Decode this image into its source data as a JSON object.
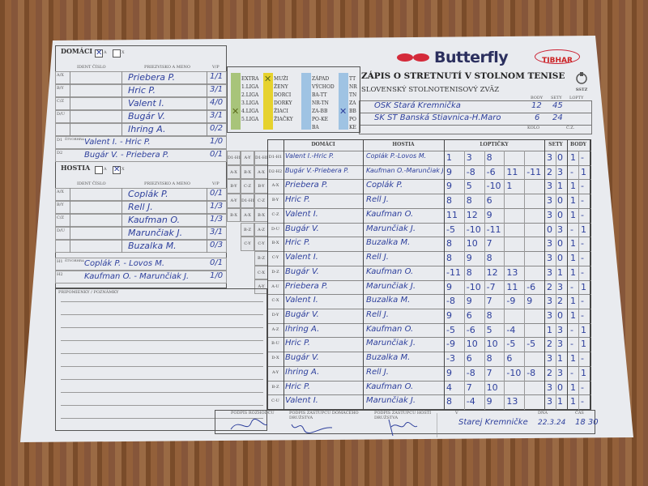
{
  "home": {
    "title": "DOMÁCI",
    "option_a": "A",
    "option_x": "X",
    "selected": "A",
    "col_ident": "IDENT ČÍSLO",
    "col_name": "PRIEZVISKO A MENO",
    "col_vp": "V/P",
    "players": [
      {
        "slot": "A/X",
        "name": "Priebera P.",
        "vp": "1/1"
      },
      {
        "slot": "B/Y",
        "name": "Hric P.",
        "vp": "3/1"
      },
      {
        "slot": "C/Z",
        "name": "Valent I.",
        "vp": "4/0"
      },
      {
        "slot": "D/U",
        "name": "Bugár V.",
        "vp": "3/1"
      },
      {
        "slot": "",
        "name": "Ihring A.",
        "vp": "0/2"
      }
    ],
    "doubles_label": "ŠTVORHRA",
    "doubles": [
      {
        "slot": "D1",
        "name": "Valent I. - Hric P.",
        "vp": "1/0"
      },
      {
        "slot": "D2",
        "name": "Bugár V. - Priebera P.",
        "vp": "0/1"
      }
    ]
  },
  "guest": {
    "title": "HOSTIA",
    "option_a": "A",
    "option_x": "X",
    "selected": "X",
    "col_ident": "IDENT ČÍSLO",
    "col_name": "PRIEZVISKO A MENO",
    "col_vp": "V/P",
    "players": [
      {
        "slot": "A/X",
        "name": "Coplák P.",
        "vp": "0/1"
      },
      {
        "slot": "B/Y",
        "name": "Rell J.",
        "vp": "1/3"
      },
      {
        "slot": "C/Z",
        "name": "Kaufman O.",
        "vp": "1/3"
      },
      {
        "slot": "D/U",
        "name": "Marunčiak J.",
        "vp": "3/1"
      },
      {
        "slot": "",
        "name": "Buzalka M.",
        "vp": "0/3"
      }
    ],
    "doubles_label": "ŠTVORHRA",
    "doubles": [
      {
        "slot": "H1",
        "name": "Coplák P. - Lovos M.",
        "vp": "0/1"
      },
      {
        "slot": "H2",
        "name": "Kaufman O. - Marunčiak J.",
        "vp": "1/0"
      }
    ]
  },
  "notes_label": "PRIPOMIENKY / POZNÁMKY",
  "categories": [
    {
      "color": "#a8c47a",
      "items": [
        "EXTRA",
        "1.LIGA",
        "2.LIGA",
        "3.LIGA",
        "4.LIGA",
        "5.LIGA"
      ],
      "checked": "4.LIGA"
    },
    {
      "color": "#e6d22e",
      "items": [
        "MUŽI",
        "ŽENY",
        "DORCI",
        "DORKY",
        "ŽIACI",
        "ŽIAČKY"
      ],
      "checked": "MUŽI"
    },
    {
      "color": "#9fc3e3",
      "items": [
        "ZÁPAD",
        "VÝCHOD",
        "BA-TT",
        "NR-TN",
        "ZA-BB",
        "PO-KE",
        "BA"
      ],
      "checked": ""
    },
    {
      "color": "#9fc3e3",
      "items": [
        "TT",
        "NR",
        "TN",
        "ZA",
        "BB",
        "PO",
        "KE"
      ],
      "checked": "BB"
    }
  ],
  "pairing_orders": [
    [
      "D1-H1",
      "A-X",
      "B-Y",
      "A-Y",
      "B-X"
    ],
    [
      "A-Y",
      "B-X",
      "C-Z",
      "D1-H1",
      "A-X",
      "B-Z",
      "C-Y"
    ],
    [
      "D1-H1",
      "A-X",
      "B-Y",
      "C-Z",
      "B-X",
      "A-Z",
      "C-Y",
      "B-Z",
      "C-X",
      "A-Y"
    ]
  ],
  "header": {
    "brand": "Butterfly",
    "brand2": "TIBHAR",
    "title": "ZÁPIS O STRETNUTÍ V STOLNOM TENISE",
    "federation": "SLOVENSKÝ STOLNOTENISOVÝ ZVÄZ",
    "federation_logo": "SSTZ",
    "col_body": "BODY",
    "col_sety": "SETY",
    "col_lopty": "LOPTY",
    "home_team": {
      "name": "OSK Stará Kremnička",
      "body": "12",
      "sety": "45"
    },
    "guest_team": {
      "name": "ŠK ST Banská Štiavnica-H.Maro",
      "body": "6",
      "sety": "24"
    },
    "label_kolo": "KOLO",
    "label_cz": "Č.Z."
  },
  "matches": {
    "col_home": "DOMÁCI",
    "col_guest": "HOSTIA",
    "col_balls": "LOPTIČKY",
    "col_sets": "SETY",
    "col_points": "BODY",
    "rows": [
      {
        "pair": "D1-H1",
        "home": "Valent I.-Hric P.",
        "guest": "Coplák P.-Lovos M.",
        "balls": [
          "1",
          "3",
          "8"
        ],
        "sets": [
          "3",
          "0"
        ],
        "points": [
          "1",
          "-"
        ]
      },
      {
        "pair": "D2-H2",
        "home": "Bugár V.-Priebera P.",
        "guest": "Kaufman O.-Marunčiak J.",
        "balls": [
          "9",
          "-8",
          "-6",
          "11",
          "-11"
        ],
        "sets": [
          "2",
          "3"
        ],
        "points": [
          "-",
          "1"
        ]
      },
      {
        "pair": "A-X",
        "home": "Priebera P.",
        "guest": "Coplák P.",
        "balls": [
          "9",
          "5",
          "-10",
          "1"
        ],
        "sets": [
          "3",
          "1"
        ],
        "points": [
          "1",
          "-"
        ]
      },
      {
        "pair": "B-Y",
        "home": "Hric P.",
        "guest": "Rell J.",
        "balls": [
          "8",
          "8",
          "6"
        ],
        "sets": [
          "3",
          "0"
        ],
        "points": [
          "1",
          "-"
        ]
      },
      {
        "pair": "C-Z",
        "home": "Valent I.",
        "guest": "Kaufman O.",
        "balls": [
          "11",
          "12",
          "9"
        ],
        "sets": [
          "3",
          "0"
        ],
        "points": [
          "1",
          "-"
        ]
      },
      {
        "pair": "D-U",
        "home": "Bugár V.",
        "guest": "Marunčiak J.",
        "balls": [
          "-5",
          "-10",
          "-11"
        ],
        "sets": [
          "0",
          "3"
        ],
        "points": [
          "-",
          "1"
        ]
      },
      {
        "pair": "B-X",
        "home": "Hric P.",
        "guest": "Buzalka M.",
        "balls": [
          "8",
          "10",
          "7"
        ],
        "sets": [
          "3",
          "0"
        ],
        "points": [
          "1",
          "-"
        ]
      },
      {
        "pair": "C-Y",
        "home": "Valent I.",
        "guest": "Rell J.",
        "balls": [
          "8",
          "9",
          "8"
        ],
        "sets": [
          "3",
          "0"
        ],
        "points": [
          "1",
          "-"
        ]
      },
      {
        "pair": "D-Z",
        "home": "Bugár V.",
        "guest": "Kaufman O.",
        "balls": [
          "-11",
          "8",
          "12",
          "13"
        ],
        "sets": [
          "3",
          "1"
        ],
        "points": [
          "1",
          "-"
        ]
      },
      {
        "pair": "A-U",
        "home": "Priebera P.",
        "guest": "Marunčiak J.",
        "balls": [
          "9",
          "-10",
          "-7",
          "11",
          "-6"
        ],
        "sets": [
          "2",
          "3"
        ],
        "points": [
          "-",
          "1"
        ]
      },
      {
        "pair": "C-X",
        "home": "Valent I.",
        "guest": "Buzalka M.",
        "balls": [
          "-8",
          "9",
          "7",
          "-9",
          "9"
        ],
        "sets": [
          "3",
          "2"
        ],
        "points": [
          "1",
          "-"
        ]
      },
      {
        "pair": "D-Y",
        "home": "Bugár V.",
        "guest": "Rell J.",
        "balls": [
          "9",
          "6",
          "8"
        ],
        "sets": [
          "3",
          "0"
        ],
        "points": [
          "1",
          "-"
        ]
      },
      {
        "pair": "A-Z",
        "home": "Ihring A.",
        "guest": "Kaufman O.",
        "balls": [
          "-5",
          "-6",
          "5",
          "-4"
        ],
        "sets": [
          "1",
          "3"
        ],
        "points": [
          "-",
          "1"
        ]
      },
      {
        "pair": "B-U",
        "home": "Hric P.",
        "guest": "Marunčiak J.",
        "balls": [
          "-9",
          "10",
          "10",
          "-5",
          "-5"
        ],
        "sets": [
          "2",
          "3"
        ],
        "points": [
          "-",
          "1"
        ]
      },
      {
        "pair": "D-X",
        "home": "Bugár V.",
        "guest": "Buzalka M.",
        "balls": [
          "-3",
          "6",
          "8",
          "6"
        ],
        "sets": [
          "3",
          "1"
        ],
        "points": [
          "1",
          "-"
        ]
      },
      {
        "pair": "A-Y",
        "home": "Ihring A.",
        "guest": "Rell J.",
        "balls": [
          "9",
          "-8",
          "7",
          "-10",
          "-8"
        ],
        "sets": [
          "2",
          "3"
        ],
        "points": [
          "-",
          "1"
        ]
      },
      {
        "pair": "B-Z",
        "home": "Hric P.",
        "guest": "Kaufman O.",
        "balls": [
          "4",
          "7",
          "10"
        ],
        "sets": [
          "3",
          "0"
        ],
        "points": [
          "1",
          "-"
        ]
      },
      {
        "pair": "C-U",
        "home": "Valent I.",
        "guest": "Marunčiak J.",
        "balls": [
          "8",
          "-4",
          "9",
          "13"
        ],
        "sets": [
          "3",
          "1"
        ],
        "points": [
          "1",
          "-"
        ]
      }
    ]
  },
  "footer": {
    "label_referee": "PODPIS ROZHODCU",
    "label_home_rep": "PODPIS ZÁSTUPCU DOMÁCEHO DRUŽSTVA",
    "label_guest_rep": "PODPIS ZÁSTUPCU HOSTÍ DRUŽSTVA",
    "label_place": "V",
    "place": "Starej Kremničke",
    "label_date": "DŇA",
    "date": "22.3.24",
    "label_time": "ČAS",
    "time": "18 30"
  }
}
